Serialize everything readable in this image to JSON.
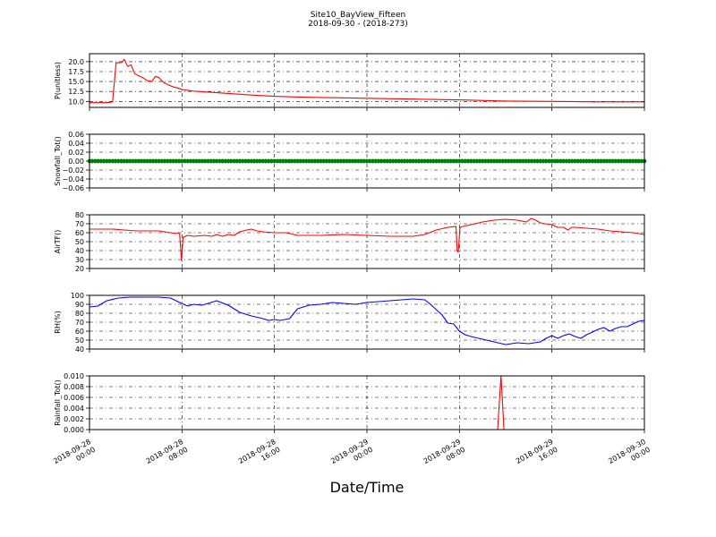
{
  "figure": {
    "title": "Site10_BayView_Fifteen",
    "subtitle": "2018-09-30 - (2018-273)",
    "xlabel": "Date/Time"
  },
  "chart_data": {
    "type": "line",
    "x_tick_labels": [
      [
        "2018-09-28",
        "00:00"
      ],
      [
        "2018-09-28",
        "08:00"
      ],
      [
        "2018-09-28",
        "16:00"
      ],
      [
        "2018-09-29",
        "00:00"
      ],
      [
        "2018-09-29",
        "08:00"
      ],
      [
        "2018-09-29",
        "16:00"
      ],
      [
        "2018-09-30",
        "00:00"
      ]
    ],
    "xlim": [
      0,
      48
    ],
    "x_unit": "hours since 2018-09-28 00:00",
    "grid": true,
    "panels": [
      {
        "ylabel": "P(unitless)",
        "ylim": [
          8.5,
          22
        ],
        "yticks": [
          10.0,
          12.5,
          15.0,
          17.5,
          20.0
        ],
        "ytick_labels": [
          "10.0",
          "12.5",
          "15.0",
          "17.5",
          "20.0"
        ],
        "color": "#ff0000",
        "series": {
          "x": [
            0,
            1.5,
            2.0,
            2.3,
            2.8,
            3.0,
            3.3,
            3.6,
            3.9,
            4.2,
            4.6,
            5.0,
            5.4,
            5.7,
            6.0,
            6.4,
            6.8,
            7.2,
            7.6,
            8.0,
            9,
            10,
            12,
            14,
            16,
            18,
            20,
            24,
            28,
            32,
            36,
            40,
            44,
            48
          ],
          "y": [
            9.7,
            9.7,
            9.9,
            19.7,
            19.8,
            20.6,
            18.8,
            19.2,
            17.0,
            16.5,
            16.0,
            15.2,
            15.0,
            16.3,
            16.0,
            14.8,
            14.2,
            13.7,
            13.4,
            13.0,
            12.6,
            12.4,
            12.0,
            11.6,
            11.3,
            11.1,
            11.0,
            10.8,
            10.6,
            10.4,
            10.1,
            10.0,
            9.9,
            9.9
          ]
        }
      },
      {
        "ylabel": "Snowfall_Tot()",
        "ylim": [
          -0.06,
          0.06
        ],
        "yticks": [
          -0.06,
          -0.04,
          -0.02,
          0.0,
          0.02,
          0.04,
          0.06
        ],
        "ytick_labels": [
          "−0.06",
          "−0.04",
          "−0.02",
          "0.00",
          "0.02",
          "0.04",
          "0.06"
        ],
        "color": "#008000",
        "style": "markers",
        "series": {
          "x": [
            0,
            48
          ],
          "y": [
            0,
            0
          ],
          "marker_step_hours": 0.25
        }
      },
      {
        "ylabel": "AirTF()",
        "ylim": [
          20,
          80
        ],
        "yticks": [
          20,
          30,
          40,
          50,
          60,
          70,
          80
        ],
        "ytick_labels": [
          "20",
          "30",
          "40",
          "50",
          "60",
          "70",
          "80"
        ],
        "color": "#ff0000",
        "series": {
          "x": [
            0,
            2,
            3,
            4,
            5,
            6,
            7,
            7.5,
            7.7,
            7.8,
            7.95,
            8.1,
            8.5,
            9,
            10,
            10.6,
            11,
            11.5,
            12,
            12.5,
            13,
            13.6,
            14,
            14.5,
            15,
            16,
            17,
            18,
            20,
            22,
            24,
            26,
            28,
            29,
            30,
            31,
            31.7,
            31.8,
            31.9,
            32.05,
            32.3,
            33,
            34,
            35,
            36,
            37,
            37.8,
            38.2,
            38.6,
            39,
            39.4,
            40,
            40.5,
            41,
            41.4,
            41.7,
            42,
            43,
            44,
            45,
            46,
            47,
            48
          ],
          "y": [
            64,
            64,
            63,
            62,
            62,
            62,
            60,
            59,
            60,
            58,
            29,
            55,
            57,
            56,
            57,
            56,
            58,
            56,
            58,
            57,
            61,
            63,
            64,
            62,
            61,
            60,
            60,
            57,
            57,
            58,
            57,
            56,
            56,
            58,
            63,
            66,
            67,
            40,
            38,
            66,
            67,
            69,
            72,
            74,
            75,
            74,
            72,
            76,
            74,
            71,
            70,
            69,
            66,
            66,
            63,
            66,
            66,
            65,
            64,
            62,
            61,
            60,
            58
          ]
        }
      },
      {
        "ylabel": "RH(%)",
        "ylim": [
          40,
          100
        ],
        "yticks": [
          40,
          50,
          60,
          70,
          80,
          90,
          100
        ],
        "ytick_labels": [
          "40",
          "50",
          "60",
          "70",
          "80",
          "90",
          "100"
        ],
        "color": "#0000ff",
        "series": {
          "x": [
            0,
            0.7,
            1.5,
            2.5,
            3.5,
            4.5,
            6,
            7,
            7.8,
            8.5,
            9,
            9.7,
            10,
            10.5,
            11,
            12,
            12.5,
            13,
            14,
            15,
            15.5,
            16,
            16.5,
            17.3,
            18,
            19,
            20,
            21,
            22,
            23,
            24,
            25,
            26,
            27,
            28,
            29,
            29.5,
            30,
            30.5,
            31,
            31.5,
            32,
            32.5,
            33,
            34,
            35,
            36,
            37,
            38,
            38.5,
            39,
            39.5,
            40,
            40.5,
            41,
            41.5,
            42,
            42.5,
            43,
            43.5,
            44,
            44.5,
            45,
            45.5,
            46,
            46.5,
            47,
            47.5,
            48
          ],
          "y": [
            87,
            88,
            94,
            97,
            98,
            98,
            98,
            97,
            92,
            88,
            90,
            89,
            90,
            92,
            94,
            89,
            85,
            81,
            77,
            74,
            72,
            73,
            72,
            74,
            85,
            89,
            90,
            92,
            91,
            90,
            92,
            93,
            94,
            95,
            96,
            95,
            90,
            84,
            78,
            69,
            68,
            60,
            56,
            54,
            51,
            48,
            45,
            47,
            46,
            47,
            48,
            52,
            55,
            52,
            55,
            57,
            54,
            52,
            56,
            59,
            62,
            64,
            60,
            63,
            65,
            65,
            68,
            71,
            72
          ]
        }
      },
      {
        "ylabel": "Rainfall_Tot()",
        "ylim": [
          0,
          0.01
        ],
        "yticks": [
          0.0,
          0.002,
          0.004,
          0.006,
          0.008,
          0.01
        ],
        "ytick_labels": [
          "0.000",
          "0.002",
          "0.004",
          "0.006",
          "0.008",
          "0.010"
        ],
        "color": "#ff0000",
        "series": {
          "x": [
            0,
            35.3,
            35.6,
            35.85,
            48
          ],
          "y": [
            0,
            0,
            0.01,
            0,
            0
          ]
        }
      }
    ]
  }
}
